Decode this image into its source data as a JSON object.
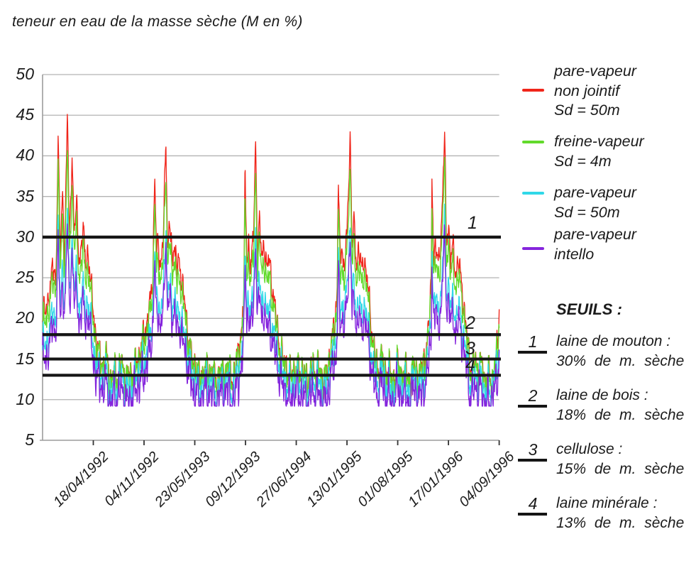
{
  "chart_data": {
    "type": "line",
    "title": "teneur en eau de la masse sèche (M en %)",
    "ylim": [
      5,
      50
    ],
    "y_ticks": [
      50,
      45,
      40,
      35,
      30,
      25,
      20,
      15,
      10,
      5
    ],
    "x_ticks": [
      {
        "day": 200,
        "label": "18/04/1992"
      },
      {
        "day": 400,
        "label": "04/11/1992"
      },
      {
        "day": 600,
        "label": "23/05/1993"
      },
      {
        "day": 800,
        "label": "09/12/1993"
      },
      {
        "day": 1000,
        "label": "27/06/1994"
      },
      {
        "day": 1200,
        "label": "13/01/1995"
      },
      {
        "day": 1400,
        "label": "01/08/1995"
      },
      {
        "day": 1600,
        "label": "17/01/1996"
      },
      {
        "day": 1800,
        "label": "04/09/1996"
      }
    ],
    "x_total_days": 1800,
    "grid_color": "#b3b3b3",
    "axis_color": "#9c9c9c",
    "threshold_color": "#151515",
    "text_color": "#1b1b1b",
    "series": [
      {
        "name": "pare-vapeur non jointif Sd = 50m",
        "legend_lines": [
          "pare-vapeur",
          "non jointif",
          "Sd = 50m"
        ],
        "color": "#f0251a",
        "trough": 13.4,
        "scale": 1.0,
        "noise_amp": 0.9,
        "t_shift": 0
      },
      {
        "name": "freine-vapeur Sd = 4m",
        "legend_lines": [
          "freine-vapeur",
          "Sd = 4m"
        ],
        "color": "#62da2b",
        "trough": 13.3,
        "scale": 0.87,
        "noise_amp": 1.0,
        "t_shift": 1.4
      },
      {
        "name": "pare-vapeur Sd = 50m",
        "legend_lines": [
          "pare-vapeur",
          "Sd = 50m"
        ],
        "color": "#30d8e8",
        "trough": 11.9,
        "scale": 0.68,
        "noise_amp": 1.1,
        "t_shift": 2.8
      },
      {
        "name": "pare-vapeur intello",
        "legend_lines": [
          "pare-vapeur",
          "intello"
        ],
        "color": "#8525dd",
        "trough": 10.5,
        "scale": 0.655,
        "noise_amp": 1.18,
        "t_shift": 4.2
      }
    ],
    "envelope_base": 13.4,
    "envelope_keypoints": [
      [
        0,
        19.5
      ],
      [
        12,
        21
      ],
      [
        25,
        23.5
      ],
      [
        40,
        26
      ],
      [
        53,
        24.5
      ],
      [
        61,
        42.5
      ],
      [
        70,
        27.5
      ],
      [
        78,
        36
      ],
      [
        87,
        28.5
      ],
      [
        98,
        45.5
      ],
      [
        106,
        29
      ],
      [
        116,
        40
      ],
      [
        125,
        30
      ],
      [
        134,
        34
      ],
      [
        144,
        27.5
      ],
      [
        160,
        31
      ],
      [
        170,
        26.5
      ],
      [
        178,
        28
      ],
      [
        187,
        25
      ],
      [
        196,
        22
      ],
      [
        206,
        19.5
      ],
      [
        216,
        17
      ],
      [
        228,
        15
      ],
      [
        240,
        13.8
      ],
      [
        252,
        14.5
      ],
      [
        266,
        12.9
      ],
      [
        280,
        13.6
      ],
      [
        295,
        12.7
      ],
      [
        312,
        13.4
      ],
      [
        330,
        12.8
      ],
      [
        348,
        13.6
      ],
      [
        362,
        13
      ],
      [
        377,
        14.5
      ],
      [
        390,
        16.5
      ],
      [
        402,
        18.5
      ],
      [
        414,
        20.5
      ],
      [
        425,
        22
      ],
      [
        435,
        25.5
      ],
      [
        442,
        37.8
      ],
      [
        449,
        27
      ],
      [
        456,
        29.5
      ],
      [
        464,
        26.5
      ],
      [
        476,
        30
      ],
      [
        486,
        42.8
      ],
      [
        493,
        28.5
      ],
      [
        501,
        31.5
      ],
      [
        510,
        27
      ],
      [
        519,
        29
      ],
      [
        530,
        26
      ],
      [
        540,
        27.5
      ],
      [
        551,
        24.5
      ],
      [
        562,
        21.5
      ],
      [
        572,
        18
      ],
      [
        582,
        15.5
      ],
      [
        592,
        14
      ],
      [
        604,
        14.8
      ],
      [
        616,
        13
      ],
      [
        630,
        13.8
      ],
      [
        645,
        12.7
      ],
      [
        662,
        13.5
      ],
      [
        680,
        12.8
      ],
      [
        698,
        13.6
      ],
      [
        714,
        12.9
      ],
      [
        730,
        13.4
      ],
      [
        745,
        12.8
      ],
      [
        758,
        14
      ],
      [
        772,
        16
      ],
      [
        784,
        18.5
      ],
      [
        790,
        21
      ],
      [
        794,
        24
      ],
      [
        798,
        37.6
      ],
      [
        805,
        27
      ],
      [
        812,
        29.5
      ],
      [
        820,
        26.5
      ],
      [
        831,
        30
      ],
      [
        840,
        42.4
      ],
      [
        847,
        28.5
      ],
      [
        855,
        31.5
      ],
      [
        864,
        27
      ],
      [
        873,
        29
      ],
      [
        884,
        26
      ],
      [
        894,
        27.5
      ],
      [
        905,
        24.5
      ],
      [
        916,
        21.5
      ],
      [
        927,
        18
      ],
      [
        938,
        15.5
      ],
      [
        950,
        14
      ],
      [
        962,
        14.8
      ],
      [
        975,
        13
      ],
      [
        990,
        13.8
      ],
      [
        1006,
        12.7
      ],
      [
        1023,
        13.5
      ],
      [
        1041,
        12.8
      ],
      [
        1060,
        13.6
      ],
      [
        1077,
        12.9
      ],
      [
        1094,
        13.4
      ],
      [
        1110,
        12.8
      ],
      [
        1124,
        14
      ],
      [
        1138,
        16.2
      ],
      [
        1150,
        18.5
      ],
      [
        1157,
        21
      ],
      [
        1161,
        24
      ],
      [
        1166,
        37.5
      ],
      [
        1173,
        27
      ],
      [
        1180,
        29.5
      ],
      [
        1188,
        26.5
      ],
      [
        1200,
        30
      ],
      [
        1213,
        42.5
      ],
      [
        1220,
        28.5
      ],
      [
        1228,
        31.5
      ],
      [
        1237,
        27
      ],
      [
        1246,
        29
      ],
      [
        1257,
        26
      ],
      [
        1267,
        27.5
      ],
      [
        1278,
        24.5
      ],
      [
        1289,
        21.5
      ],
      [
        1300,
        18
      ],
      [
        1311,
        15.5
      ],
      [
        1323,
        14
      ],
      [
        1335,
        14.8
      ],
      [
        1348,
        13
      ],
      [
        1363,
        13.8
      ],
      [
        1379,
        12.7
      ],
      [
        1396,
        13.5
      ],
      [
        1414,
        12.8
      ],
      [
        1433,
        13.6
      ],
      [
        1450,
        12.9
      ],
      [
        1467,
        13.4
      ],
      [
        1482,
        12.8
      ],
      [
        1495,
        14
      ],
      [
        1509,
        16.2
      ],
      [
        1521,
        18.5
      ],
      [
        1528,
        21
      ],
      [
        1532,
        24
      ],
      [
        1535,
        37.5
      ],
      [
        1542,
        27
      ],
      [
        1549,
        29.5
      ],
      [
        1557,
        26.5
      ],
      [
        1570,
        30
      ],
      [
        1585,
        42.5
      ],
      [
        1592,
        28.5
      ],
      [
        1600,
        31.5
      ],
      [
        1609,
        27
      ],
      [
        1618,
        29
      ],
      [
        1628,
        26
      ],
      [
        1638,
        27.5
      ],
      [
        1649,
        24.5
      ],
      [
        1660,
        21.5
      ],
      [
        1671,
        18
      ],
      [
        1682,
        15.5
      ],
      [
        1694,
        14
      ],
      [
        1706,
        14.8
      ],
      [
        1719,
        13
      ],
      [
        1734,
        13.8
      ],
      [
        1748,
        12.5
      ],
      [
        1762,
        13.3
      ],
      [
        1775,
        12.2
      ],
      [
        1786,
        14
      ],
      [
        1793,
        16.5
      ],
      [
        1800,
        21
      ]
    ],
    "noise_components": [
      [
        67,
        0.5
      ],
      [
        29,
        0.8
      ],
      [
        15,
        0.85
      ],
      [
        8.5,
        0.8
      ],
      [
        4.6,
        0.55
      ]
    ],
    "seuils_heading": "SEUILS :",
    "thresholds": [
      {
        "num": "1",
        "value": 30,
        "label": "laine de mouton :",
        "label2": "30% de m. sèche"
      },
      {
        "num": "2",
        "value": 18,
        "label": "laine de bois :",
        "label2": "18% de m. sèche"
      },
      {
        "num": "3",
        "value": 15,
        "label": "cellulose :",
        "label2": "15% de m. sèche"
      },
      {
        "num": "4",
        "value": 13,
        "label": "laine minérale :",
        "label2": "13% de m. sèche"
      }
    ]
  }
}
